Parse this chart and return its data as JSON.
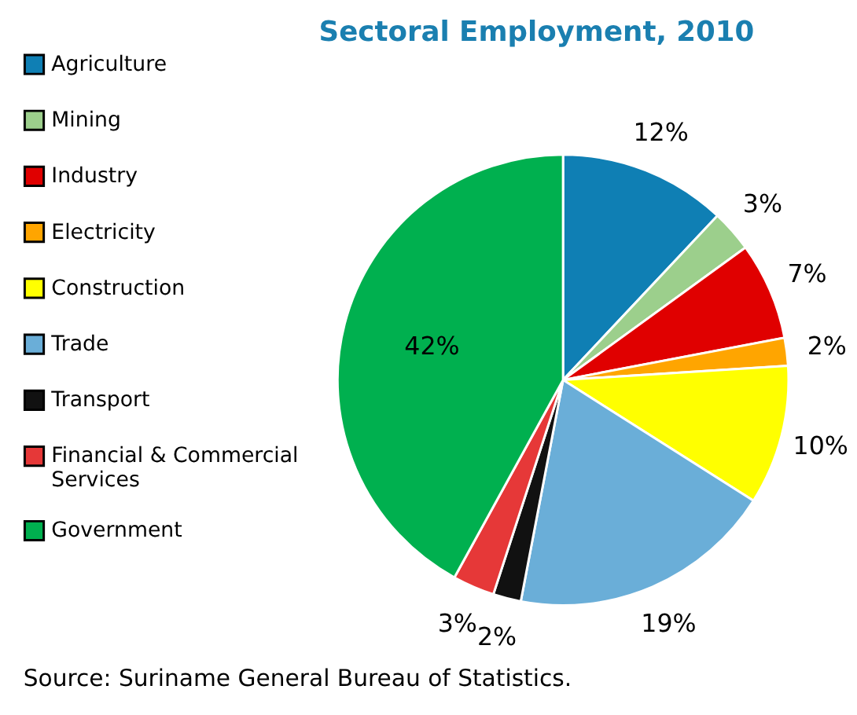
{
  "chart_data": {
    "type": "pie",
    "title": "Sectoral Employment, 2010",
    "categories": [
      "Agriculture",
      "Mining",
      "Industry",
      "Electricity",
      "Construction",
      "Trade",
      "Transport",
      "Financial & Commercial Services",
      "Government"
    ],
    "values": [
      12,
      3,
      7,
      2,
      10,
      19,
      2,
      3,
      42
    ],
    "value_labels": [
      "12%",
      "3%",
      "7%",
      "2%",
      "10%",
      "19%",
      "2%",
      "3%",
      "42%"
    ],
    "colors": [
      "#0f7fb4",
      "#9ccf8c",
      "#e00000",
      "#ffa500",
      "#ffff00",
      "#6aaed8",
      "#111111",
      "#e63838",
      "#00b04f"
    ],
    "legend": "left",
    "annotations": [
      "Source:  Suriname General Bureau of Statistics."
    ]
  }
}
